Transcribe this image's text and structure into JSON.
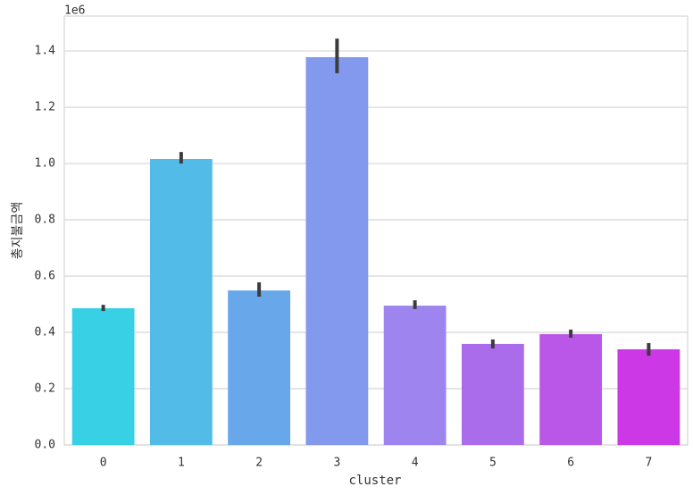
{
  "chart_data": {
    "type": "bar",
    "x_label": "cluster",
    "y_label": "총지불금액",
    "offset_label": "1e6",
    "categories": [
      "0",
      "1",
      "2",
      "3",
      "4",
      "5",
      "6",
      "7"
    ],
    "values": [
      0.486,
      1.016,
      0.549,
      1.378,
      0.495,
      0.359,
      0.394,
      0.34
    ],
    "error_low": [
      0.476,
      1.0,
      0.527,
      1.321,
      0.483,
      0.343,
      0.381,
      0.317
    ],
    "error_high": [
      0.498,
      1.041,
      0.578,
      1.444,
      0.514,
      0.375,
      0.41,
      0.362
    ],
    "colors": [
      "#38d0e5",
      "#52bbe8",
      "#67a7ea",
      "#8399ee",
      "#9e84ef",
      "#ab6cec",
      "#bb57e8",
      "#cc38e5"
    ],
    "error_color": "#3c3c3c",
    "ylim": [
      0,
      1.524
    ],
    "yticks": [
      {
        "value": 0,
        "label": "0.0"
      },
      0.2,
      0.4,
      0.6,
      0.8,
      {
        "value": 1,
        "label": "1.0"
      },
      1.2,
      1.4
    ],
    "grid": true
  }
}
